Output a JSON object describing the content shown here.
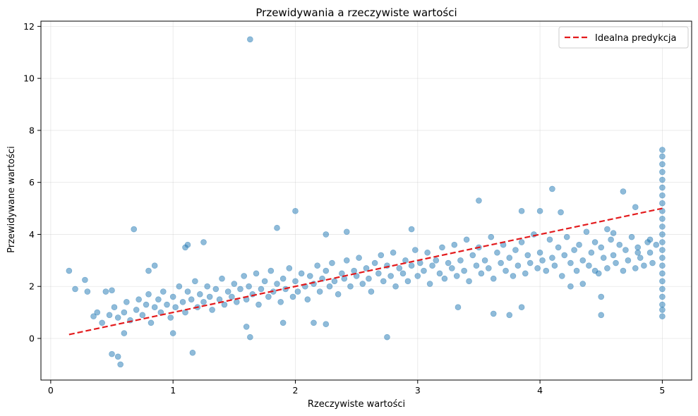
{
  "chart_data": {
    "type": "scatter",
    "title": "Przewidywania a rzeczywiste wartości",
    "xlabel": "Rzeczywiste wartości",
    "ylabel": "Przewidywane wartości",
    "xlim": [
      -0.08,
      5.24
    ],
    "ylim": [
      -1.6,
      12.2
    ],
    "xticks": [
      0,
      1,
      2,
      3,
      4,
      5
    ],
    "yticks": [
      0,
      2,
      4,
      6,
      8,
      10,
      12
    ],
    "grid": true,
    "legend_position": "top-right",
    "colors": {
      "points": "#1f77b4",
      "ideal_line": "#e31a1c"
    },
    "series": [
      {
        "kind": "scatter",
        "points": [
          [
            1.63,
            11.5
          ],
          [
            0.15,
            2.6
          ],
          [
            0.2,
            1.9
          ],
          [
            0.28,
            2.25
          ],
          [
            0.3,
            1.8
          ],
          [
            0.35,
            0.85
          ],
          [
            0.38,
            1.0
          ],
          [
            0.45,
            1.8
          ],
          [
            0.5,
            1.85
          ],
          [
            0.5,
            -0.6
          ],
          [
            0.55,
            -0.7
          ],
          [
            0.57,
            -1.0
          ],
          [
            0.6,
            0.2
          ],
          [
            0.68,
            4.2
          ],
          [
            0.8,
            2.6
          ],
          [
            0.85,
            2.8
          ],
          [
            1.1,
            3.5
          ],
          [
            1.12,
            3.6
          ],
          [
            1.25,
            3.7
          ],
          [
            1.16,
            -0.55
          ],
          [
            1.0,
            0.2
          ],
          [
            1.6,
            0.45
          ],
          [
            1.63,
            0.05
          ],
          [
            1.9,
            0.6
          ],
          [
            2.0,
            4.9
          ],
          [
            1.85,
            4.25
          ],
          [
            2.25,
            4.0
          ],
          [
            2.42,
            4.1
          ],
          [
            2.15,
            0.6
          ],
          [
            2.25,
            0.55
          ],
          [
            2.75,
            0.05
          ],
          [
            2.95,
            4.2
          ],
          [
            3.5,
            5.3
          ],
          [
            3.85,
            4.9
          ],
          [
            4.0,
            4.9
          ],
          [
            4.1,
            5.75
          ],
          [
            4.17,
            4.85
          ],
          [
            4.68,
            5.65
          ],
          [
            4.78,
            5.05
          ],
          [
            4.5,
            0.9
          ],
          [
            4.5,
            1.6
          ],
          [
            3.85,
            1.2
          ],
          [
            3.75,
            0.9
          ],
          [
            3.62,
            0.95
          ],
          [
            3.33,
            1.2
          ],
          [
            4.25,
            2.0
          ],
          [
            4.35,
            2.1
          ],
          [
            4.45,
            2.6
          ],
          [
            4.8,
            3.3
          ],
          [
            4.9,
            3.8
          ],
          [
            4.6,
            4.05
          ],
          [
            4.55,
            4.2
          ],
          [
            0.42,
            0.6
          ],
          [
            0.48,
            0.9
          ],
          [
            0.52,
            1.2
          ],
          [
            0.55,
            0.8
          ],
          [
            0.6,
            1.0
          ],
          [
            0.62,
            1.4
          ],
          [
            0.65,
            0.7
          ],
          [
            0.7,
            1.1
          ],
          [
            0.72,
            1.5
          ],
          [
            0.75,
            0.9
          ],
          [
            0.78,
            1.3
          ],
          [
            0.8,
            1.7
          ],
          [
            0.82,
            0.6
          ],
          [
            0.85,
            1.2
          ],
          [
            0.88,
            1.5
          ],
          [
            0.9,
            1.0
          ],
          [
            0.92,
            1.8
          ],
          [
            0.95,
            1.3
          ],
          [
            0.98,
            0.8
          ],
          [
            1.0,
            1.6
          ],
          [
            1.02,
            1.2
          ],
          [
            1.05,
            2.0
          ],
          [
            1.08,
            1.4
          ],
          [
            1.1,
            1.0
          ],
          [
            1.12,
            1.8
          ],
          [
            1.15,
            1.5
          ],
          [
            1.18,
            2.2
          ],
          [
            1.2,
            1.2
          ],
          [
            1.22,
            1.7
          ],
          [
            1.25,
            1.4
          ],
          [
            1.28,
            2.0
          ],
          [
            1.3,
            1.6
          ],
          [
            1.32,
            1.1
          ],
          [
            1.35,
            1.9
          ],
          [
            1.38,
            1.5
          ],
          [
            1.4,
            2.3
          ],
          [
            1.42,
            1.3
          ],
          [
            1.45,
            1.8
          ],
          [
            1.48,
            1.6
          ],
          [
            1.5,
            2.1
          ],
          [
            1.52,
            1.4
          ],
          [
            1.55,
            1.9
          ],
          [
            1.58,
            2.4
          ],
          [
            1.6,
            1.5
          ],
          [
            1.62,
            2.0
          ],
          [
            1.65,
            1.7
          ],
          [
            1.68,
            2.5
          ],
          [
            1.7,
            1.3
          ],
          [
            1.72,
            1.9
          ],
          [
            1.75,
            2.2
          ],
          [
            1.78,
            1.6
          ],
          [
            1.8,
            2.6
          ],
          [
            1.82,
            1.8
          ],
          [
            1.85,
            2.1
          ],
          [
            1.88,
            1.4
          ],
          [
            1.9,
            2.3
          ],
          [
            1.92,
            1.9
          ],
          [
            1.95,
            2.7
          ],
          [
            1.98,
            1.6
          ],
          [
            2.0,
            2.2
          ],
          [
            2.02,
            1.8
          ],
          [
            2.05,
            2.5
          ],
          [
            2.08,
            2.0
          ],
          [
            2.1,
            1.5
          ],
          [
            2.12,
            2.4
          ],
          [
            2.15,
            2.1
          ],
          [
            2.18,
            2.8
          ],
          [
            2.2,
            1.8
          ],
          [
            2.22,
            2.3
          ],
          [
            2.25,
            2.6
          ],
          [
            2.28,
            2.0
          ],
          [
            2.3,
            2.9
          ],
          [
            2.32,
            2.2
          ],
          [
            2.35,
            1.7
          ],
          [
            2.38,
            2.5
          ],
          [
            2.4,
            2.3
          ],
          [
            2.42,
            3.0
          ],
          [
            2.45,
            2.0
          ],
          [
            2.48,
            2.6
          ],
          [
            2.5,
            2.4
          ],
          [
            2.52,
            3.1
          ],
          [
            2.55,
            2.1
          ],
          [
            2.58,
            2.7
          ],
          [
            2.6,
            2.3
          ],
          [
            2.62,
            1.8
          ],
          [
            2.65,
            2.9
          ],
          [
            2.68,
            2.5
          ],
          [
            2.7,
            3.2
          ],
          [
            2.72,
            2.2
          ],
          [
            2.75,
            2.8
          ],
          [
            2.78,
            2.4
          ],
          [
            2.8,
            3.3
          ],
          [
            2.82,
            2.0
          ],
          [
            2.85,
            2.7
          ],
          [
            2.88,
            2.5
          ],
          [
            2.9,
            3.0
          ],
          [
            2.92,
            2.2
          ],
          [
            2.95,
            2.8
          ],
          [
            2.98,
            3.4
          ],
          [
            3.0,
            2.4
          ],
          [
            3.02,
            2.9
          ],
          [
            3.05,
            2.6
          ],
          [
            3.08,
            3.3
          ],
          [
            3.1,
            2.1
          ],
          [
            3.12,
            2.8
          ],
          [
            3.15,
            3.0
          ],
          [
            3.18,
            2.5
          ],
          [
            3.2,
            3.5
          ],
          [
            3.22,
            2.3
          ],
          [
            3.25,
            2.9
          ],
          [
            3.28,
            2.7
          ],
          [
            3.3,
            3.6
          ],
          [
            3.32,
            2.4
          ],
          [
            3.35,
            3.0
          ],
          [
            3.38,
            2.6
          ],
          [
            3.4,
            3.8
          ],
          [
            3.42,
            2.2
          ],
          [
            3.45,
            3.2
          ],
          [
            3.48,
            2.8
          ],
          [
            3.5,
            3.5
          ],
          [
            3.52,
            2.5
          ],
          [
            3.55,
            3.0
          ],
          [
            3.58,
            2.7
          ],
          [
            3.6,
            3.9
          ],
          [
            3.62,
            2.3
          ],
          [
            3.65,
            3.3
          ],
          [
            3.68,
            2.9
          ],
          [
            3.7,
            3.6
          ],
          [
            3.72,
            2.6
          ],
          [
            3.75,
            3.1
          ],
          [
            3.78,
            2.4
          ],
          [
            3.8,
            3.4
          ],
          [
            3.82,
            2.8
          ],
          [
            3.85,
            3.7
          ],
          [
            3.88,
            2.5
          ],
          [
            3.9,
            3.2
          ],
          [
            3.92,
            2.9
          ],
          [
            3.95,
            4.0
          ],
          [
            3.98,
            2.7
          ],
          [
            4.0,
            3.3
          ],
          [
            4.02,
            3.0
          ],
          [
            4.05,
            2.6
          ],
          [
            4.08,
            3.8
          ],
          [
            4.1,
            3.1
          ],
          [
            4.12,
            2.8
          ],
          [
            4.15,
            3.5
          ],
          [
            4.18,
            2.4
          ],
          [
            4.2,
            3.2
          ],
          [
            4.22,
            3.9
          ],
          [
            4.25,
            2.9
          ],
          [
            4.28,
            3.4
          ],
          [
            4.3,
            2.6
          ],
          [
            4.32,
            3.6
          ],
          [
            4.35,
            3.0
          ],
          [
            4.38,
            4.1
          ],
          [
            4.4,
            2.8
          ],
          [
            4.42,
            3.3
          ],
          [
            4.45,
            3.7
          ],
          [
            4.48,
            2.5
          ],
          [
            4.5,
            3.5
          ],
          [
            4.52,
            3.1
          ],
          [
            4.55,
            2.7
          ],
          [
            4.58,
            3.8
          ],
          [
            4.6,
            3.2
          ],
          [
            4.62,
            2.9
          ],
          [
            4.65,
            3.6
          ],
          [
            4.68,
            2.6
          ],
          [
            4.7,
            3.4
          ],
          [
            4.72,
            3.0
          ],
          [
            4.75,
            3.9
          ],
          [
            4.78,
            2.7
          ],
          [
            4.8,
            3.5
          ],
          [
            4.82,
            3.1
          ],
          [
            4.85,
            2.8
          ],
          [
            4.88,
            3.7
          ],
          [
            4.9,
            3.3
          ],
          [
            4.92,
            2.9
          ],
          [
            4.95,
            3.6
          ],
          [
            5.0,
            0.85
          ],
          [
            5.0,
            1.1
          ],
          [
            5.0,
            1.3
          ],
          [
            5.0,
            1.6
          ],
          [
            5.0,
            1.9
          ],
          [
            5.0,
            2.2
          ],
          [
            5.0,
            2.5
          ],
          [
            5.0,
            2.8
          ],
          [
            5.0,
            3.1
          ],
          [
            5.0,
            3.4
          ],
          [
            5.0,
            3.7
          ],
          [
            5.0,
            4.0
          ],
          [
            5.0,
            4.3
          ],
          [
            5.0,
            4.6
          ],
          [
            5.0,
            4.9
          ],
          [
            5.0,
            5.2
          ],
          [
            5.0,
            5.5
          ],
          [
            5.0,
            5.8
          ],
          [
            5.0,
            6.1
          ],
          [
            5.0,
            6.4
          ],
          [
            5.0,
            6.7
          ],
          [
            5.0,
            7.0
          ],
          [
            5.0,
            7.25
          ]
        ]
      },
      {
        "kind": "line",
        "name": "Idealna predykcja",
        "points": [
          [
            0.15,
            0.15
          ],
          [
            5.0,
            5.0
          ]
        ]
      }
    ]
  }
}
